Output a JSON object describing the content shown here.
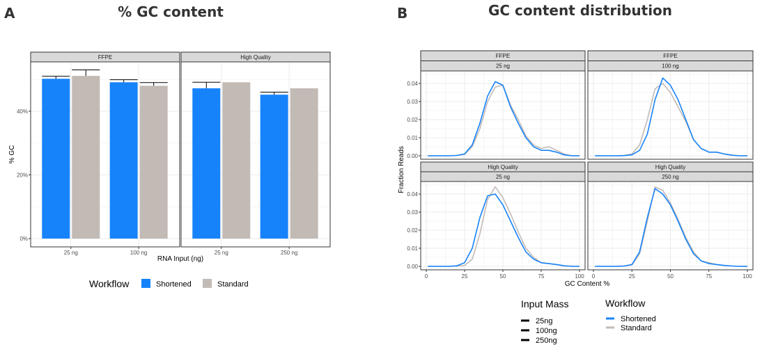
{
  "panel_a": {
    "letter": "A",
    "title": "% GC content"
  },
  "panel_b": {
    "letter": "B",
    "title": "GC content distribution"
  },
  "colors": {
    "Shortened": "#1783FB",
    "Standard": "#C2BAB5",
    "strip_bg": "#D9D9D9",
    "grid": "#EBEBEB"
  },
  "chart_data": [
    {
      "type": "bar",
      "title": "% GC content",
      "xlabel": "RNA Input (ng)",
      "ylabel": "% GC",
      "ylim": [
        -2.6,
        55.5
      ],
      "yticks": [
        0,
        20,
        40
      ],
      "ytick_labels": [
        "0%",
        "20%",
        "40%"
      ],
      "grid": true,
      "legend": {
        "title": "Workflow",
        "position": "bottom",
        "entries": [
          "Shortened",
          "Standard"
        ]
      },
      "facets": [
        {
          "label": "FFPE",
          "categories": [
            "25 ng",
            "100 ng"
          ],
          "series": [
            {
              "name": "Shortened",
              "values": [
                50.2,
                49.1
              ],
              "error_upper": [
                51.0,
                49.9
              ]
            },
            {
              "name": "Standard",
              "values": [
                51.1,
                48.0
              ],
              "error_upper": [
                53.0,
                49.0
              ]
            }
          ]
        },
        {
          "label": "High Quality",
          "categories": [
            "25 ng",
            "250 ng"
          ],
          "series": [
            {
              "name": "Shortened",
              "values": [
                47.2,
                45.2
              ],
              "error_upper": [
                49.1,
                46.0
              ]
            },
            {
              "name": "Standard",
              "values": [
                49.1,
                47.2
              ],
              "error_upper": [
                null,
                null
              ]
            }
          ]
        }
      ]
    },
    {
      "type": "line",
      "title": "GC content distribution",
      "xlabel": "GC Content %",
      "ylabel": "Fraction Reads",
      "xlim": [
        0,
        100
      ],
      "ylim": [
        0,
        0.045
      ],
      "xticks": [
        0,
        25,
        50,
        75,
        100
      ],
      "yticks": [
        0.0,
        0.01,
        0.02,
        0.03,
        0.04
      ],
      "ytick_labels": [
        "0.00",
        "0.01",
        "0.02",
        "0.03",
        "0.04"
      ],
      "grid": true,
      "legend": [
        {
          "title": "Input Mass",
          "position": "bottom",
          "entries": [
            "25ng",
            "100ng",
            "250ng"
          ]
        },
        {
          "title": "Workflow",
          "position": "bottom",
          "entries": [
            "Shortened",
            "Standard"
          ]
        }
      ],
      "x": [
        0,
        5,
        10,
        15,
        20,
        25,
        30,
        35,
        40,
        45,
        50,
        55,
        60,
        65,
        70,
        75,
        80,
        85,
        90,
        95,
        100
      ],
      "facets": [
        {
          "label1": "FFPE",
          "label2": "25 ng",
          "series": [
            {
              "name": "Shortened",
              "values": [
                0,
                0,
                0,
                0,
                0.0002,
                0.001,
                0.006,
                0.018,
                0.033,
                0.041,
                0.039,
                0.027,
                0.018,
                0.01,
                0.005,
                0.003,
                0.003,
                0.002,
                0.0005,
                0,
                0
              ]
            },
            {
              "name": "Standard",
              "values": [
                0,
                0,
                0,
                0,
                0.0002,
                0.0008,
                0.005,
                0.015,
                0.03,
                0.038,
                0.039,
                0.028,
                0.02,
                0.011,
                0.006,
                0.004,
                0.005,
                0.003,
                0.001,
                0,
                0
              ]
            }
          ]
        },
        {
          "label1": "FFPE",
          "label2": "100 ng",
          "series": [
            {
              "name": "Shortened",
              "values": [
                0,
                0,
                0,
                0,
                0.0001,
                0.0005,
                0.003,
                0.012,
                0.031,
                0.043,
                0.039,
                0.031,
                0.02,
                0.009,
                0.004,
                0.002,
                0.002,
                0.001,
                0.0003,
                0,
                0
              ]
            },
            {
              "name": "Standard",
              "values": [
                0,
                0,
                0,
                0,
                0.0002,
                0.001,
                0.006,
                0.02,
                0.037,
                0.04,
                0.035,
                0.027,
                0.019,
                0.009,
                0.004,
                0.002,
                0.002,
                0.001,
                0.0003,
                0,
                0
              ]
            }
          ]
        },
        {
          "label1": "High Quality",
          "label2": "25 ng",
          "series": [
            {
              "name": "Shortened",
              "values": [
                0,
                0,
                0,
                0,
                0.0003,
                0.002,
                0.01,
                0.027,
                0.039,
                0.04,
                0.034,
                0.025,
                0.016,
                0.008,
                0.004,
                0.002,
                0.0015,
                0.001,
                0.0003,
                0,
                0
              ]
            },
            {
              "name": "Standard",
              "values": [
                0,
                0,
                0,
                0,
                0.0001,
                0.0005,
                0.004,
                0.018,
                0.037,
                0.044,
                0.038,
                0.029,
                0.019,
                0.01,
                0.005,
                0.002,
                0.0015,
                0.001,
                0.0003,
                0,
                0
              ]
            }
          ]
        },
        {
          "label1": "High Quality",
          "label2": "250 ng",
          "series": [
            {
              "name": "Shortened",
              "values": [
                0,
                0,
                0,
                0,
                0.0002,
                0.001,
                0.008,
                0.027,
                0.043,
                0.04,
                0.034,
                0.025,
                0.015,
                0.007,
                0.003,
                0.0015,
                0.001,
                0.0005,
                0.0002,
                0,
                0
              ]
            },
            {
              "name": "Standard",
              "values": [
                0,
                0,
                0,
                0,
                0.0001,
                0.0008,
                0.007,
                0.025,
                0.044,
                0.042,
                0.035,
                0.026,
                0.016,
                0.008,
                0.003,
                0.002,
                0.001,
                0.0005,
                0.0002,
                0,
                0
              ]
            }
          ]
        }
      ]
    }
  ]
}
